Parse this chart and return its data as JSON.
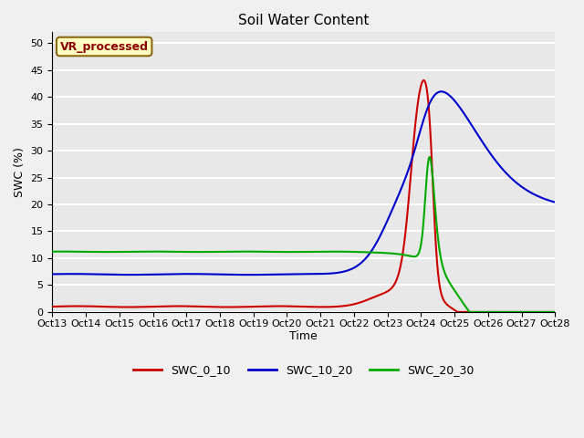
{
  "title": "Soil Water Content",
  "xlabel": "Time",
  "ylabel": "SWC (%)",
  "ylim": [
    0,
    52
  ],
  "yticks": [
    0,
    5,
    10,
    15,
    20,
    25,
    30,
    35,
    40,
    45,
    50
  ],
  "annotation_text": "VR_processed",
  "annotation_color": "#8B0000",
  "annotation_bg": "#FFFFC0",
  "line_colors": {
    "SWC_0_10": "#CC0000",
    "SWC_10_20": "#0000CC",
    "SWC_20_30": "#00AA00"
  },
  "xtick_labels": [
    "Oct 13",
    "Oct 14",
    "Oct 15",
    "Oct 16",
    "Oct 17",
    "Oct 18",
    "Oct 19",
    "Oct 20",
    "Oct 21",
    "Oct 22",
    "Oct 23",
    "Oct 24",
    "Oct 25",
    "Oct 26",
    "Oct 27",
    "Oct 28"
  ],
  "bg_color": "#E8E8E8",
  "plot_bg": "#E8E8E8",
  "grid_color": "#FFFFFF",
  "title_fontsize": 11,
  "tick_fontsize": 8,
  "legend_fontsize": 9
}
